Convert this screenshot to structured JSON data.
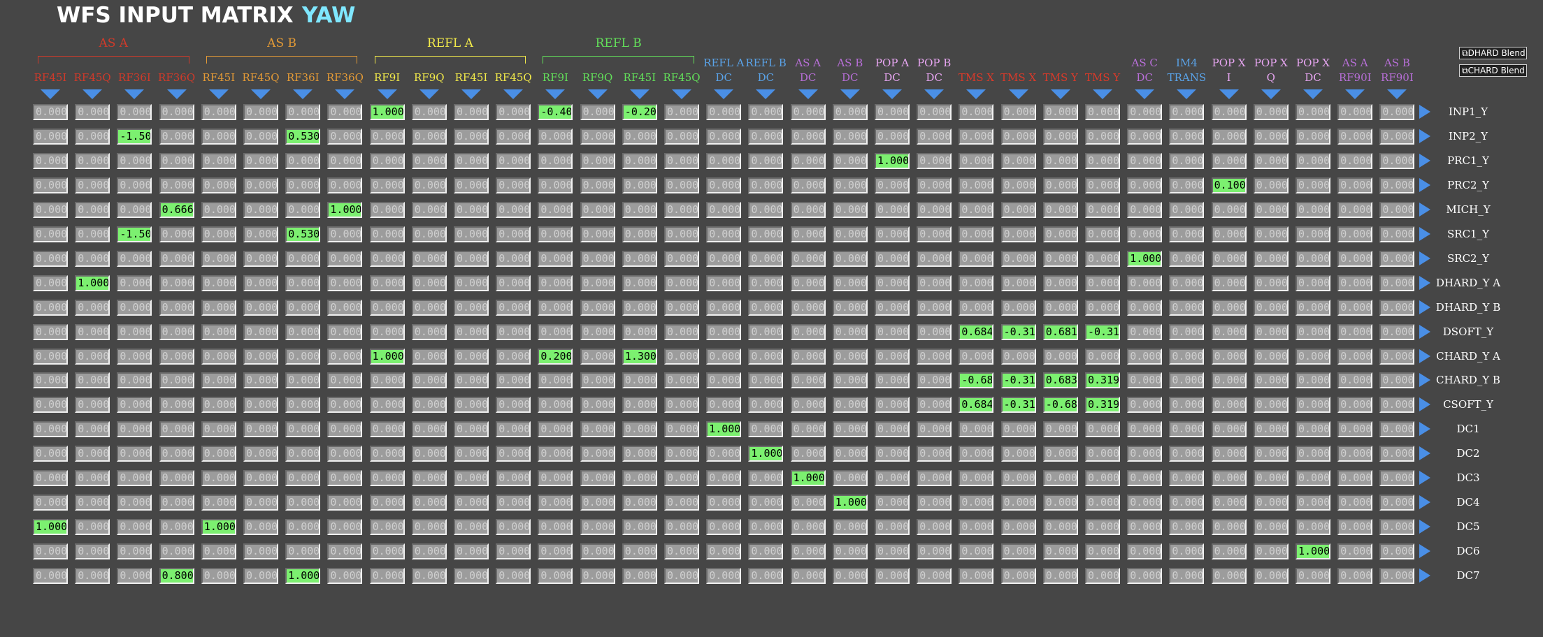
{
  "title": "WFS INPUT MATRIX",
  "subtitle": "YAW",
  "colors": {
    "background": "#464646",
    "active_cell": "#7cf070",
    "inactive_cell": "#9c9c9c",
    "arrow": "#4a8fe6",
    "group_as_a": "#d13a2a",
    "group_as_b": "#e39a36",
    "group_refl_a": "#f2ea4a",
    "group_refl_b": "#63e05a",
    "dc_refl": "#5aa3e8",
    "dc_as": "#b86fd8",
    "dc_pop": "#e8a6f2",
    "tms": "#d93a2a"
  },
  "groups": [
    {
      "label": "AS A",
      "color": "#d13a2a"
    },
    {
      "label": "AS B",
      "color": "#e39a36"
    },
    {
      "label": "REFL A",
      "color": "#f2ea4a"
    },
    {
      "label": "REFL B",
      "color": "#63e05a"
    }
  ],
  "columns": [
    {
      "label": "RF45I",
      "color": "#d13a2a"
    },
    {
      "label": "RF45Q",
      "color": "#d13a2a"
    },
    {
      "label": "RF36I",
      "color": "#d13a2a"
    },
    {
      "label": "RF36Q",
      "color": "#d13a2a"
    },
    {
      "label": "RF45I",
      "color": "#e39a36"
    },
    {
      "label": "RF45Q",
      "color": "#e39a36"
    },
    {
      "label": "RF36I",
      "color": "#e39a36"
    },
    {
      "label": "RF36Q",
      "color": "#e39a36"
    },
    {
      "label": "RF9I",
      "color": "#f2ea4a"
    },
    {
      "label": "RF9Q",
      "color": "#f2ea4a"
    },
    {
      "label": "RF45I",
      "color": "#f2ea4a"
    },
    {
      "label": "RF45Q",
      "color": "#f2ea4a"
    },
    {
      "label": "RF9I",
      "color": "#63e05a"
    },
    {
      "label": "RF9Q",
      "color": "#63e05a"
    },
    {
      "label": "RF45I",
      "color": "#63e05a"
    },
    {
      "label": "RF45Q",
      "color": "#63e05a"
    },
    {
      "label": "REFL A\nDC",
      "color": "#5aa3e8"
    },
    {
      "label": "REFL B\nDC",
      "color": "#5aa3e8"
    },
    {
      "label": "AS A\nDC",
      "color": "#b86fd8"
    },
    {
      "label": "AS B\nDC",
      "color": "#b86fd8"
    },
    {
      "label": "POP A\nDC",
      "color": "#e8a6f2"
    },
    {
      "label": "POP B\nDC",
      "color": "#e8a6f2"
    },
    {
      "label": "TMS X",
      "color": "#d93a2a"
    },
    {
      "label": "TMS X",
      "color": "#d93a2a"
    },
    {
      "label": "TMS Y",
      "color": "#d93a2a"
    },
    {
      "label": "TMS Y",
      "color": "#d93a2a"
    },
    {
      "label": "AS C\nDC",
      "color": "#b86fd8"
    },
    {
      "label": "IM4\nTRANS",
      "color": "#5aa3e8"
    },
    {
      "label": "POP X\nI",
      "color": "#e8a6f2"
    },
    {
      "label": "POP X\nQ",
      "color": "#e8a6f2"
    },
    {
      "label": "POP X\nDC",
      "color": "#e8a6f2"
    },
    {
      "label": "AS A\nRF90I",
      "color": "#b86fd8"
    },
    {
      "label": "AS B\nRF90I",
      "color": "#b86fd8"
    }
  ],
  "rows": [
    {
      "label": "INP1_Y",
      "nonzero": {
        "8": "1.000",
        "12": "-0.400",
        "14": "-0.200"
      }
    },
    {
      "label": "INP2_Y",
      "nonzero": {
        "2": "-1.500",
        "6": "0.530"
      }
    },
    {
      "label": "PRC1_Y",
      "nonzero": {
        "20": "1.000"
      }
    },
    {
      "label": "PRC2_Y",
      "nonzero": {
        "28": "0.100"
      }
    },
    {
      "label": "MICH_Y",
      "nonzero": {
        "3": "0.666",
        "7": "1.000"
      }
    },
    {
      "label": "SRC1_Y",
      "nonzero": {
        "2": "-1.500",
        "6": "0.530"
      }
    },
    {
      "label": "SRC2_Y",
      "nonzero": {
        "26": "1.000"
      }
    },
    {
      "label": "DHARD_Y A",
      "nonzero": {
        "1": "1.000"
      }
    },
    {
      "label": "DHARD_Y B",
      "nonzero": {}
    },
    {
      "label": "DSOFT_Y",
      "nonzero": {
        "22": "0.684",
        "23": "-0.316",
        "24": "0.681",
        "25": "-0.319"
      }
    },
    {
      "label": "CHARD_Y A",
      "nonzero": {
        "8": "1.000",
        "12": "0.200",
        "14": "1.300"
      }
    },
    {
      "label": "CHARD_Y B",
      "nonzero": {
        "22": "-0.684",
        "23": "-0.316",
        "24": "0.683",
        "25": "0.319"
      }
    },
    {
      "label": "CSOFT_Y",
      "nonzero": {
        "22": "0.684",
        "23": "-0.316",
        "24": "-0.683",
        "25": "0.319"
      }
    },
    {
      "label": "DC1",
      "nonzero": {
        "16": "1.000"
      }
    },
    {
      "label": "DC2",
      "nonzero": {
        "17": "1.000"
      }
    },
    {
      "label": "DC3",
      "nonzero": {
        "18": "1.000"
      }
    },
    {
      "label": "DC4",
      "nonzero": {
        "19": "1.000"
      }
    },
    {
      "label": "DC5",
      "nonzero": {
        "0": "1.000",
        "4": "1.000"
      }
    },
    {
      "label": "DC6",
      "nonzero": {
        "30": "1.000"
      }
    },
    {
      "label": "DC7",
      "nonzero": {
        "3": "0.800",
        "6": "1.000"
      }
    }
  ],
  "zero_value": "0.000",
  "blend_buttons": [
    {
      "label": "DHARD Blend",
      "icon": "link-icon"
    },
    {
      "label": "CHARD Blend",
      "icon": "link-icon"
    }
  ]
}
